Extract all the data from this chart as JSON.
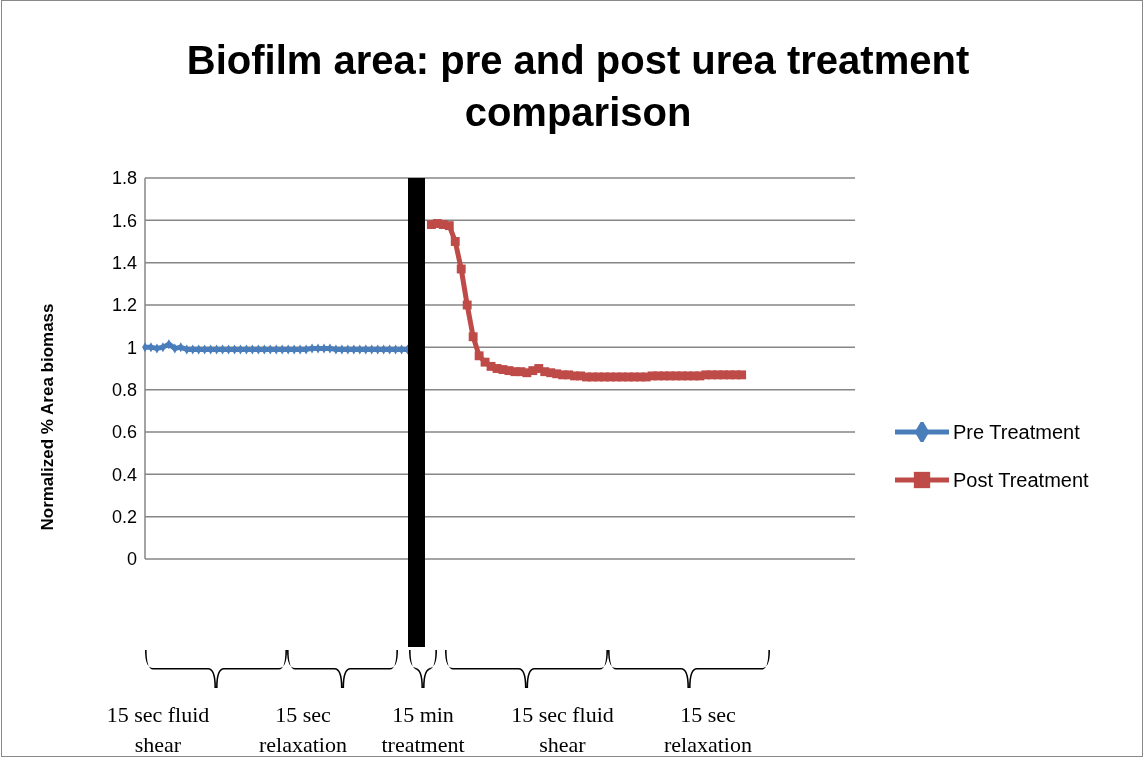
{
  "chart_data": {
    "type": "line",
    "title": "Biofilm area: pre and post urea treatment comparison",
    "ylabel": "Normalized % Area biomass",
    "categories": [
      null,
      null,
      null,
      null,
      null,
      null,
      null,
      null,
      null,
      null,
      null,
      null,
      null,
      null,
      null,
      null,
      null,
      null,
      null,
      null,
      null,
      null,
      null,
      null,
      null,
      null,
      null,
      null,
      null,
      null,
      null,
      null,
      null,
      null,
      null,
      null,
      null,
      null,
      null,
      null,
      null,
      null,
      null,
      null,
      null,
      null,
      null,
      null,
      null,
      null,
      null,
      null,
      null,
      null,
      null,
      null,
      null,
      null,
      null,
      null,
      null,
      null,
      null,
      null,
      null,
      null,
      null,
      null,
      null,
      null,
      null,
      null,
      null,
      null,
      null,
      null,
      null,
      null,
      null,
      null,
      null,
      null,
      null,
      null,
      null,
      null,
      null,
      null,
      null,
      null,
      null,
      null,
      null,
      null,
      null,
      null,
      null,
      null,
      null,
      null,
      null,
      null,
      null,
      null,
      null,
      null,
      null,
      null,
      null,
      null,
      null,
      null,
      null,
      null,
      null,
      null,
      null,
      null,
      null,
      null
    ],
    "series": [
      {
        "name": "Pre Treatment",
        "color": "#4a7ebb",
        "marker": "diamond",
        "values": [
          1.0,
          1.0,
          0.995,
          1.0,
          1.015,
          0.995,
          1.0,
          0.99,
          0.99,
          0.99,
          0.99,
          0.99,
          0.99,
          0.99,
          0.99,
          0.99,
          0.99,
          0.99,
          0.99,
          0.99,
          0.99,
          0.99,
          0.99,
          0.99,
          0.99,
          0.99,
          0.99,
          0.99,
          0.995,
          0.995,
          0.995,
          0.995,
          0.99,
          0.99,
          0.99,
          0.99,
          0.99,
          0.99,
          0.99,
          0.99,
          0.99,
          0.99,
          0.99,
          0.99,
          0.99,
          null,
          null,
          null,
          null,
          null,
          null,
          null,
          null,
          null,
          null,
          null,
          null,
          null,
          null,
          null,
          null,
          null,
          null,
          null,
          null,
          null,
          null,
          null,
          null,
          null,
          null,
          null,
          null,
          null,
          null,
          null,
          null,
          null,
          null,
          null,
          null,
          null,
          null,
          null,
          null,
          null,
          null,
          null,
          null,
          null,
          null,
          null,
          null,
          null,
          null,
          null,
          null,
          null,
          null,
          null,
          null,
          null,
          null,
          null,
          null,
          null,
          null,
          null,
          null,
          null,
          null,
          null,
          null,
          null,
          null,
          null,
          null,
          null,
          null,
          null
        ]
      },
      {
        "name": "Post Treatment",
        "color": "#be4b48",
        "marker": "square",
        "values": [
          null,
          null,
          null,
          null,
          null,
          null,
          null,
          null,
          null,
          null,
          null,
          null,
          null,
          null,
          null,
          null,
          null,
          null,
          null,
          null,
          null,
          null,
          null,
          null,
          null,
          null,
          null,
          null,
          null,
          null,
          null,
          null,
          null,
          null,
          null,
          null,
          null,
          null,
          null,
          null,
          null,
          null,
          null,
          null,
          null,
          null,
          null,
          null,
          1.58,
          1.585,
          1.58,
          1.575,
          1.5,
          1.37,
          1.2,
          1.05,
          0.96,
          0.93,
          0.91,
          0.9,
          0.895,
          0.89,
          0.885,
          0.885,
          0.88,
          0.89,
          0.9,
          0.885,
          0.88,
          0.875,
          0.87,
          0.87,
          0.865,
          0.865,
          0.86,
          0.86,
          0.86,
          0.86,
          0.86,
          0.86,
          0.86,
          0.86,
          0.86,
          0.86,
          0.86,
          0.865,
          0.865,
          0.865,
          0.865,
          0.865,
          0.865,
          0.865,
          0.865,
          0.865,
          0.87,
          0.87,
          0.87,
          0.87,
          0.87,
          0.87,
          0.87,
          null,
          null,
          null,
          null,
          null,
          null,
          null,
          null,
          null,
          null,
          null,
          null,
          null,
          null,
          null,
          null,
          null,
          null,
          null
        ]
      }
    ],
    "ylim": [
      0,
      1.8
    ],
    "yticks": [
      0,
      0.2,
      0.4,
      0.6,
      0.8,
      1,
      1.2,
      1.4,
      1.6,
      1.8
    ],
    "grid": "y",
    "legend": "right",
    "tick_labels": "y",
    "annotations": [
      "15 sec fluid shear",
      "15 sec relaxation",
      "15 min treatment",
      "15 sec fluid shear",
      "15 sec relaxation"
    ]
  }
}
